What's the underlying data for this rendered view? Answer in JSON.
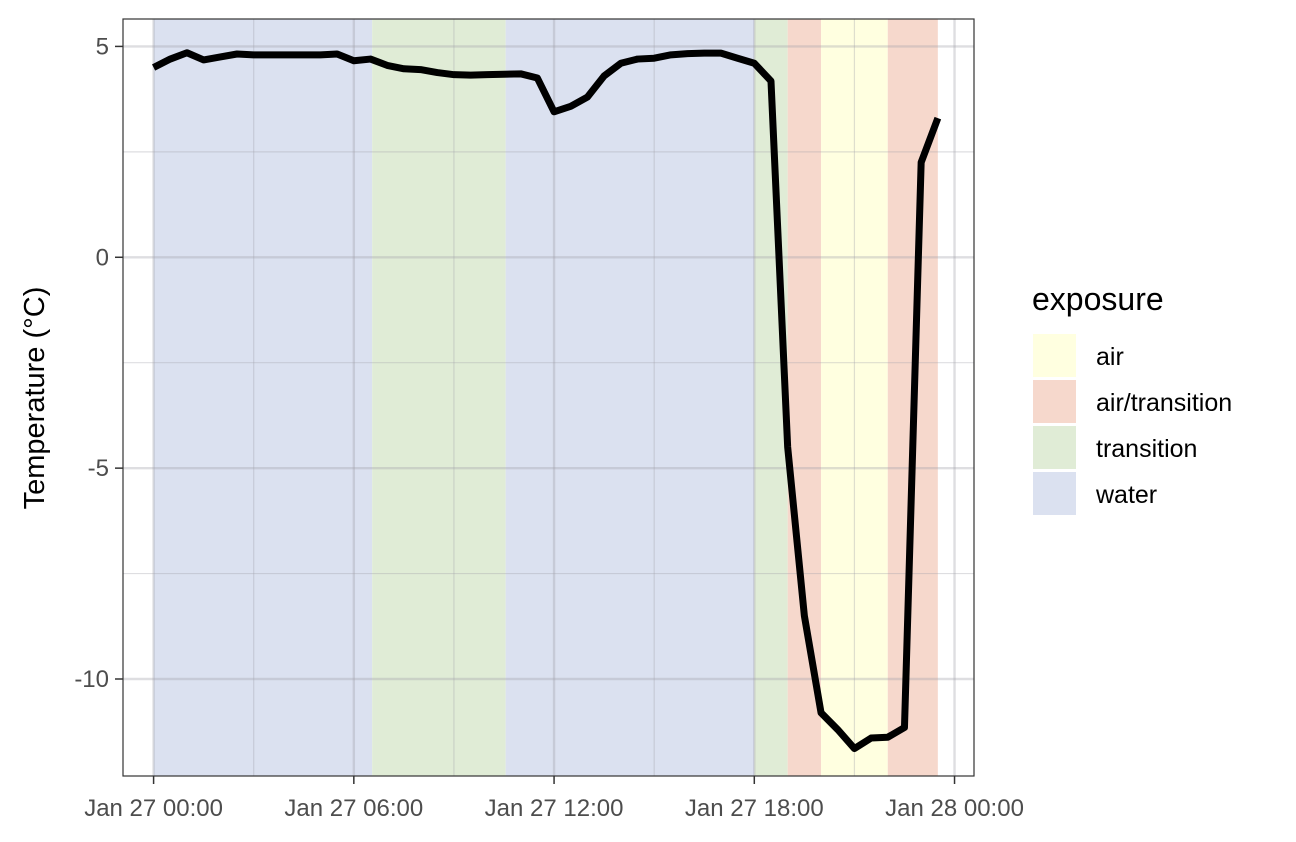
{
  "chart_data": {
    "type": "line",
    "title": "",
    "xlabel": "",
    "ylabel": "Temperature (°C)",
    "ylim": [
      -12.3,
      5.65
    ],
    "xlim": [
      "2024-01-26T23:05",
      "2024-01-28T00:35"
    ],
    "yticks": [
      5,
      0,
      -5,
      -10
    ],
    "ytick_labels": [
      "5",
      "0",
      "-5",
      "-10"
    ],
    "xticks": [
      "2024-01-27T00:00",
      "2024-01-27T06:00",
      "2024-01-27T12:00",
      "2024-01-27T18:00",
      "2024-01-28T00:00"
    ],
    "xtick_labels": [
      "Jan 27 00:00",
      "Jan 27 06:00",
      "Jan 27 12:00",
      "Jan 27 18:00",
      "Jan 28 00:00"
    ],
    "grid": true,
    "line_color": "#000000",
    "series": [
      {
        "x": [
          "2024-01-27T00:00",
          "2024-01-27T00:30",
          "2024-01-27T01:00",
          "2024-01-27T01:30",
          "2024-01-27T02:00",
          "2024-01-27T02:30",
          "2024-01-27T03:00",
          "2024-01-27T03:30",
          "2024-01-27T04:00",
          "2024-01-27T04:30",
          "2024-01-27T05:00",
          "2024-01-27T05:30",
          "2024-01-27T06:00",
          "2024-01-27T06:30",
          "2024-01-27T07:00",
          "2024-01-27T07:30",
          "2024-01-27T08:00",
          "2024-01-27T08:30",
          "2024-01-27T09:00",
          "2024-01-27T09:30",
          "2024-01-27T10:00",
          "2024-01-27T10:30",
          "2024-01-27T11:00",
          "2024-01-27T11:30",
          "2024-01-27T12:00",
          "2024-01-27T12:30",
          "2024-01-27T13:00",
          "2024-01-27T13:30",
          "2024-01-27T14:00",
          "2024-01-27T14:30",
          "2024-01-27T15:00",
          "2024-01-27T15:30",
          "2024-01-27T16:00",
          "2024-01-27T16:30",
          "2024-01-27T17:00",
          "2024-01-27T17:30",
          "2024-01-27T18:00",
          "2024-01-27T18:30",
          "2024-01-27T19:00",
          "2024-01-27T19:30",
          "2024-01-27T20:00",
          "2024-01-27T20:30",
          "2024-01-27T21:00",
          "2024-01-27T21:30",
          "2024-01-27T22:00",
          "2024-01-27T22:30",
          "2024-01-27T23:00",
          "2024-01-27T23:30"
        ],
        "values": [
          4.5,
          4.7,
          4.85,
          4.68,
          4.75,
          4.82,
          4.8,
          4.8,
          4.8,
          4.8,
          4.8,
          4.82,
          4.66,
          4.7,
          4.55,
          4.47,
          4.45,
          4.38,
          4.33,
          4.32,
          4.33,
          4.34,
          4.35,
          4.25,
          3.45,
          3.58,
          3.8,
          4.3,
          4.6,
          4.7,
          4.72,
          4.8,
          4.83,
          4.84,
          4.84,
          4.72,
          4.6,
          4.18,
          -4.5,
          -8.5,
          -10.8,
          -11.2,
          -11.65,
          -11.4,
          -11.38,
          -11.15,
          2.25,
          3.3
        ]
      }
    ],
    "bands": [
      {
        "start": "2024-01-27T00:00",
        "end": "2024-01-27T06:33",
        "exposure": "water"
      },
      {
        "start": "2024-01-27T06:33",
        "end": "2024-01-27T10:33",
        "exposure": "transition"
      },
      {
        "start": "2024-01-27T10:33",
        "end": "2024-01-27T18:00",
        "exposure": "water"
      },
      {
        "start": "2024-01-27T18:00",
        "end": "2024-01-27T19:00",
        "exposure": "transition"
      },
      {
        "start": "2024-01-27T19:00",
        "end": "2024-01-27T20:00",
        "exposure": "air/transition"
      },
      {
        "start": "2024-01-27T20:00",
        "end": "2024-01-27T22:00",
        "exposure": "air"
      },
      {
        "start": "2024-01-27T22:00",
        "end": "2024-01-27T23:30",
        "exposure": "air/transition"
      }
    ],
    "legend": {
      "title": "exposure",
      "placement": "right",
      "items": [
        {
          "label": "air",
          "color": "#ffffe0"
        },
        {
          "label": "air/transition",
          "color": "#f6d8cc"
        },
        {
          "label": "transition",
          "color": "#e0ecd6"
        },
        {
          "label": "water",
          "color": "#dbe1f0"
        }
      ]
    }
  }
}
